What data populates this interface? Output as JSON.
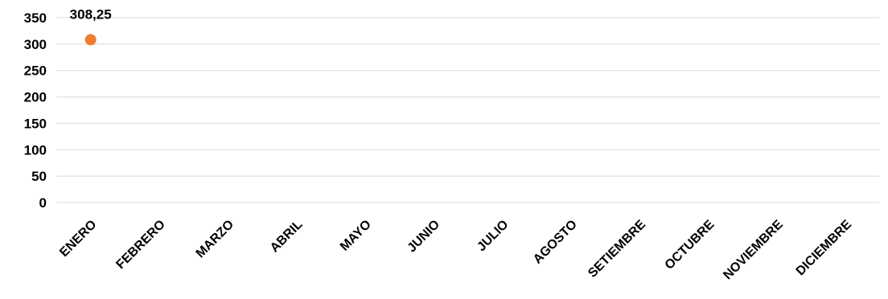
{
  "chart_data": {
    "type": "scatter",
    "title": "",
    "xlabel": "",
    "ylabel": "",
    "categories": [
      "ENERO",
      "FEBRERO",
      "MARZO",
      "ABRIL",
      "MAYO",
      "JUNIO",
      "JULIO",
      "AGOSTO",
      "SETIEMBRE",
      "OCTUBRE",
      "NOVIEMBRE",
      "DICIEMBRE"
    ],
    "series": [
      {
        "values": [
          308.25,
          null,
          null,
          null,
          null,
          null,
          null,
          null,
          null,
          null,
          null,
          null
        ],
        "color": "#ed7d31",
        "data_labels": [
          "308,25",
          "",
          "",
          "",
          "",
          "",
          "",
          "",
          "",
          "",
          "",
          ""
        ]
      }
    ],
    "ylim": [
      0,
      350
    ],
    "yticks": [
      0,
      50,
      100,
      150,
      200,
      250,
      300,
      350
    ],
    "ytick_labels": [
      "0",
      "50",
      "100",
      "150",
      "200",
      "250",
      "300",
      "350"
    ],
    "grid": true,
    "legend": "none",
    "colors": {
      "marker": "#ed7d31",
      "grid": "#d9d9d9",
      "text": "#000000"
    }
  }
}
